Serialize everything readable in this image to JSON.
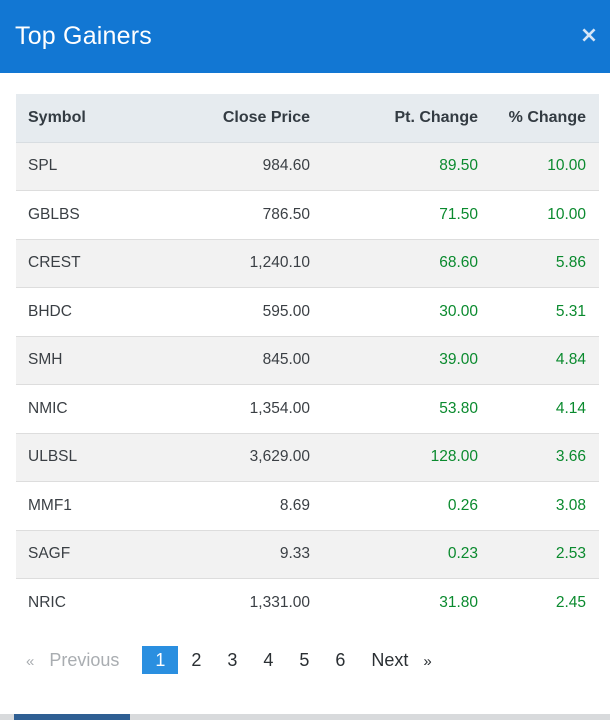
{
  "modal": {
    "title": "Top Gainers",
    "close_icon": "×"
  },
  "table": {
    "headers": {
      "symbol": "Symbol",
      "close": "Close Price",
      "pt": "Pt. Change",
      "pct": "% Change"
    },
    "rows": [
      {
        "symbol": "SPL",
        "close": "984.60",
        "pt": "89.50",
        "pct": "10.00"
      },
      {
        "symbol": "GBLBS",
        "close": "786.50",
        "pt": "71.50",
        "pct": "10.00"
      },
      {
        "symbol": "CREST",
        "close": "1,240.10",
        "pt": "68.60",
        "pct": "5.86"
      },
      {
        "symbol": "BHDC",
        "close": "595.00",
        "pt": "30.00",
        "pct": "5.31"
      },
      {
        "symbol": "SMH",
        "close": "845.00",
        "pt": "39.00",
        "pct": "4.84"
      },
      {
        "symbol": "NMIC",
        "close": "1,354.00",
        "pt": "53.80",
        "pct": "4.14"
      },
      {
        "symbol": "ULBSL",
        "close": "3,629.00",
        "pt": "128.00",
        "pct": "3.66"
      },
      {
        "symbol": "MMF1",
        "close": "8.69",
        "pt": "0.26",
        "pct": "3.08"
      },
      {
        "symbol": "SAGF",
        "close": "9.33",
        "pt": "0.23",
        "pct": "2.53"
      },
      {
        "symbol": "NRIC",
        "close": "1,331.00",
        "pt": "31.80",
        "pct": "2.45"
      }
    ]
  },
  "pagination": {
    "prev_arrow": "«",
    "prev_label": "Previous",
    "pages": [
      "1",
      "2",
      "3",
      "4",
      "5",
      "6"
    ],
    "active_page": "1",
    "next_label": "Next",
    "next_arrow": "»"
  },
  "colors": {
    "header_bg": "#1277d3",
    "positive": "#0a8a2e",
    "active_page_bg": "#2a8fe0"
  }
}
